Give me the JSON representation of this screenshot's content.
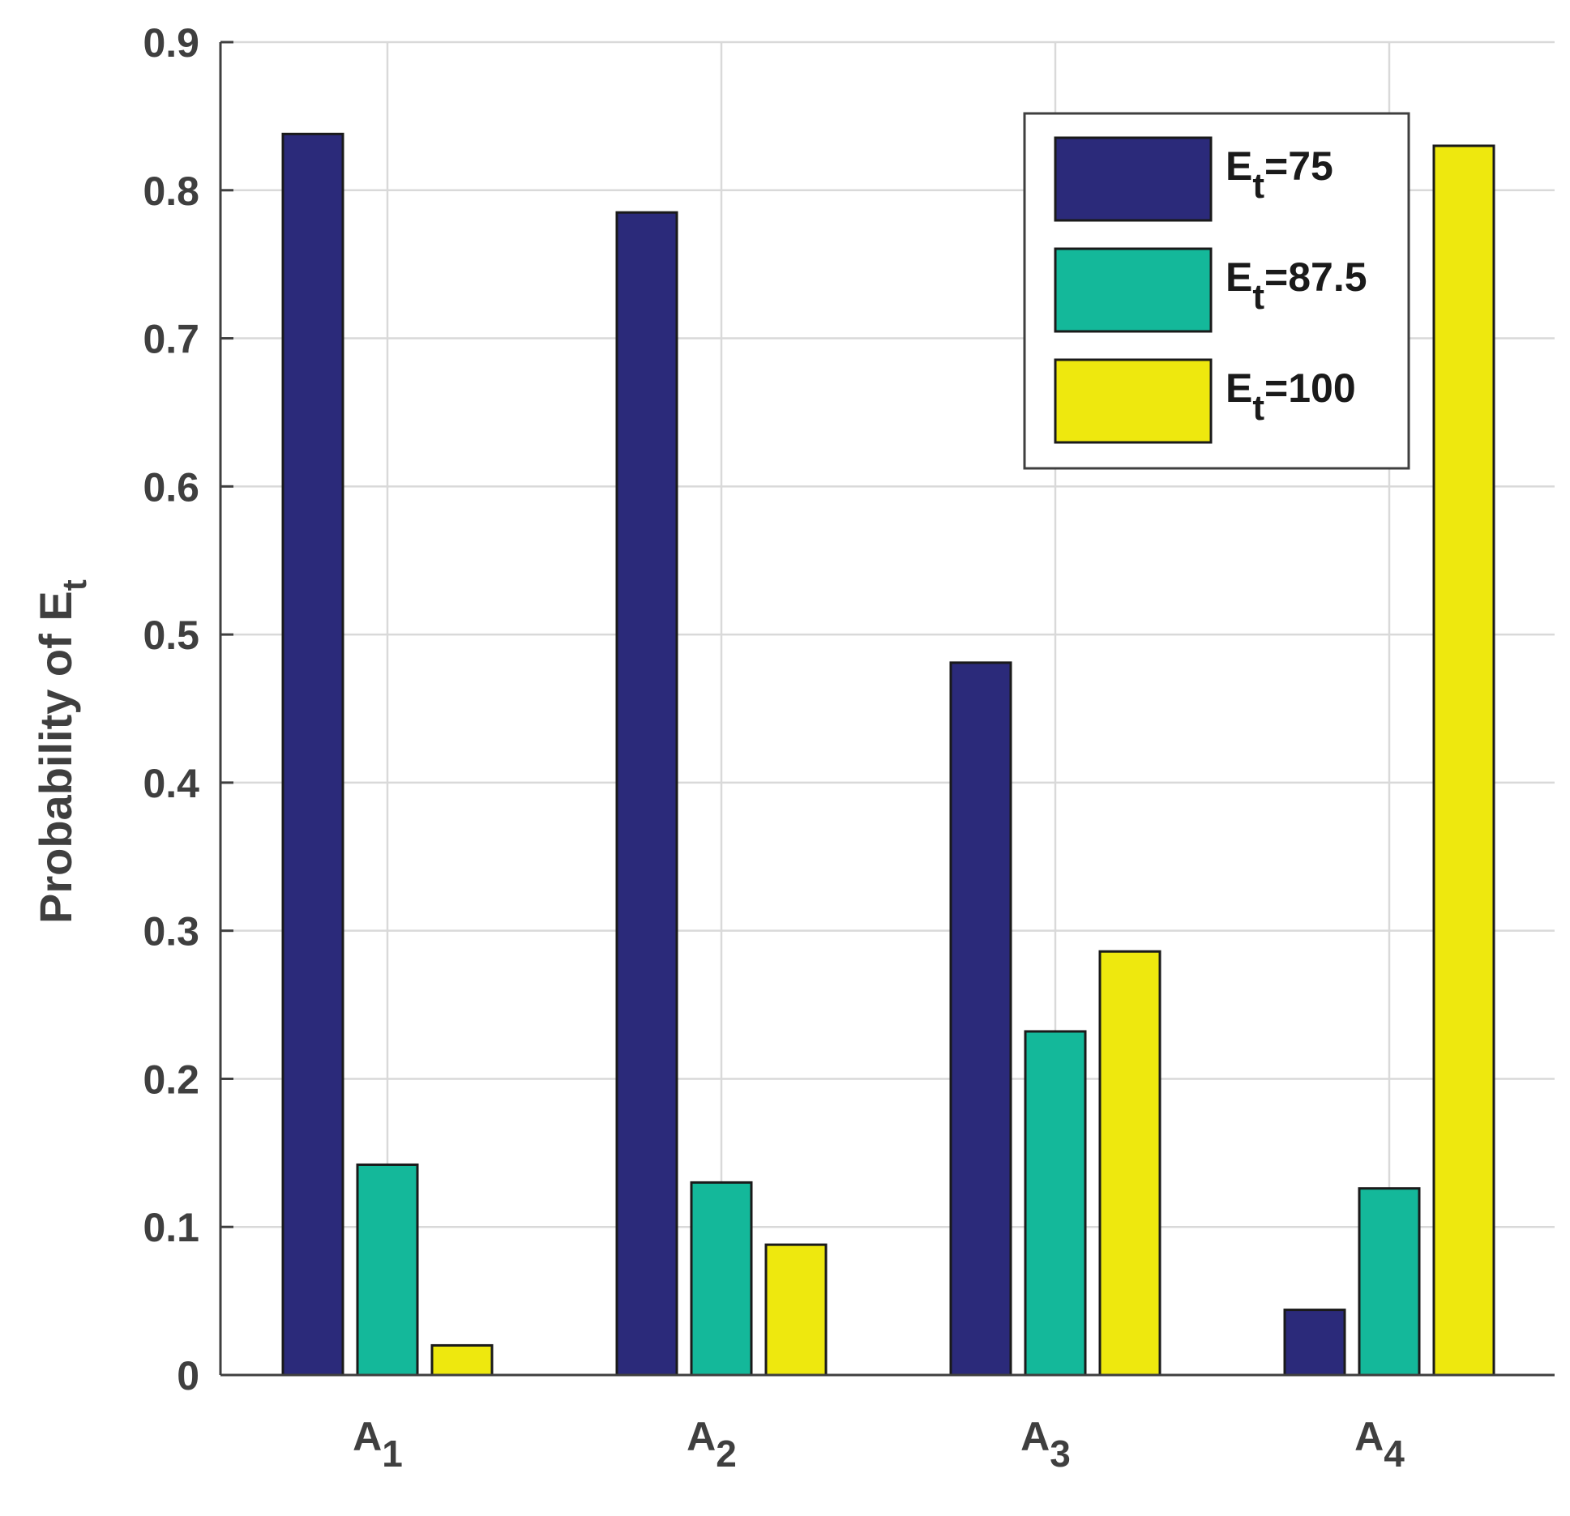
{
  "chart_data": {
    "type": "bar",
    "title": "",
    "xlabel": "",
    "ylabel": {
      "main": "Probability of E",
      "sub": "t"
    },
    "ylim": [
      0,
      0.9
    ],
    "yticks": [
      "0",
      "0.1",
      "0.2",
      "0.3",
      "0.4",
      "0.5",
      "0.6",
      "0.7",
      "0.8",
      "0.9"
    ],
    "categories": [
      {
        "main": "A",
        "sub": "1"
      },
      {
        "main": "A",
        "sub": "2"
      },
      {
        "main": "A",
        "sub": "3"
      },
      {
        "main": "A",
        "sub": "4"
      }
    ],
    "series": [
      {
        "name": "E_t=75",
        "label_main": "E",
        "label_sub": "t",
        "label_rest": "=75",
        "color": "#2b2a7a",
        "values": [
          0.838,
          0.785,
          0.481,
          0.044
        ]
      },
      {
        "name": "E_t=87.5",
        "label_main": "E",
        "label_sub": "t",
        "label_rest": "=87.5",
        "color": "#14b89a",
        "values": [
          0.142,
          0.13,
          0.232,
          0.126
        ]
      },
      {
        "name": "E_t=100",
        "label_main": "E",
        "label_sub": "t",
        "label_rest": "=100",
        "color": "#eee80e",
        "values": [
          0.02,
          0.088,
          0.286,
          0.83
        ]
      }
    ],
    "grid": true,
    "legend_position": "top-right"
  }
}
